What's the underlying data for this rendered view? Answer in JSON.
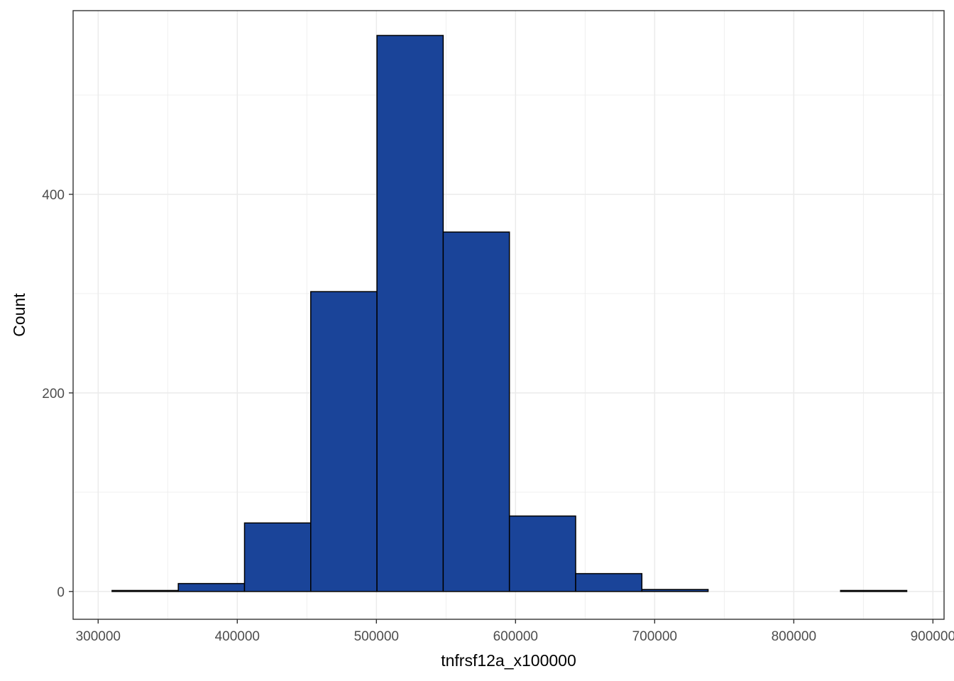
{
  "chart_data": {
    "type": "bar",
    "subtype": "histogram",
    "title": "",
    "xlabel": "tnfrsf12a_x100000",
    "ylabel": "Count",
    "xlim": [
      282000,
      908000
    ],
    "ylim": [
      -28,
      585
    ],
    "x_ticks": [
      300000,
      400000,
      500000,
      600000,
      700000,
      800000,
      900000
    ],
    "x_minor_ticks": [
      350000,
      450000,
      550000,
      650000,
      750000,
      850000
    ],
    "y_ticks": [
      0,
      200,
      400
    ],
    "y_minor_ticks": [
      100,
      300,
      500
    ],
    "grid": true,
    "legend": "none",
    "bin_edges": [
      310000,
      357600,
      405200,
      452800,
      500400,
      548000,
      595600,
      643200,
      690800,
      738400,
      786000,
      833600,
      881200
    ],
    "values": [
      1,
      8,
      69,
      302,
      560,
      362,
      76,
      18,
      2,
      0,
      0,
      1
    ],
    "colors": {
      "fill": "#1a4499",
      "outline": "#000000",
      "grid": "#ebebeb",
      "panel_border": "#333333"
    }
  }
}
